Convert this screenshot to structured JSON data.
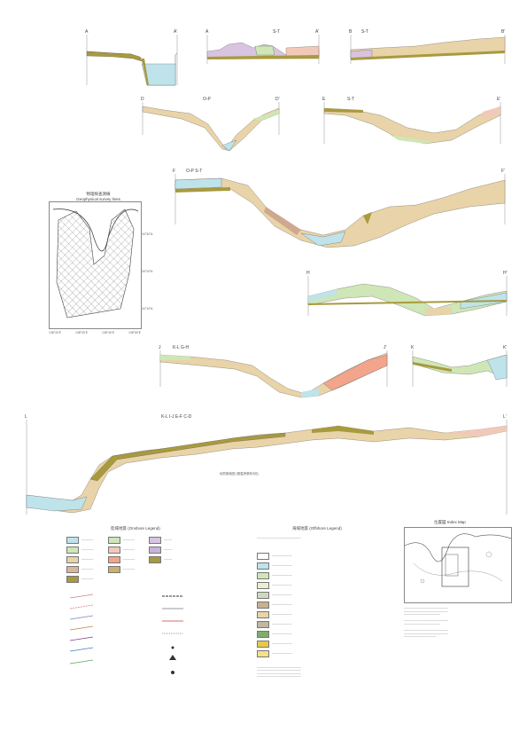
{
  "sheet": {
    "title_cn": "物理探查測線",
    "title_en": "Geophysical survey lines",
    "index_map_title": "位置図 Index Map"
  },
  "sections": [
    {
      "id": "s1",
      "left": "A",
      "right": "A'",
      "label": ""
    },
    {
      "id": "s2",
      "left": "A",
      "right": "A'",
      "label": "S-T"
    },
    {
      "id": "s3",
      "left": "B",
      "right": "B'",
      "label": "S-T"
    },
    {
      "id": "s4",
      "left": "D",
      "right": "D'",
      "label": "O-P"
    },
    {
      "id": "s5",
      "left": "E",
      "right": "E'",
      "label": "S-T"
    },
    {
      "id": "s6",
      "left": "F",
      "right": "F'",
      "label": "O-P  S-T"
    },
    {
      "id": "s7",
      "left": "H",
      "right": "H'",
      "label": ""
    },
    {
      "id": "s8",
      "left": "J",
      "right": "J'",
      "label": "K-L   G-H"
    },
    {
      "id": "s9",
      "left": "K",
      "right": "K'",
      "label": ""
    },
    {
      "id": "s10",
      "left": "L",
      "right": "L'",
      "label": "K-L   I-J   E-F   C-D"
    }
  ],
  "survey_ticks": {
    "lat": [
      "34°30'N",
      "34°20'N",
      "34°10'N"
    ],
    "lon": [
      "138°20'E",
      "138°30'E",
      "138°40'E",
      "138°50'E"
    ]
  },
  "legend": {
    "onshore_title": "陸域地質 (Onshore Legend)",
    "offshore_title": "海域地質 (Offshore Legend)",
    "note": "地質断面図 (垂直誇張約5倍)"
  },
  "colors": {
    "olive": "#a89a3e",
    "cyan": "#bfe3ea",
    "pink": "#f2c9b8",
    "green": "#cfe6b6",
    "lilac": "#d8c4e0",
    "sand": "#e9d3a8"
  }
}
